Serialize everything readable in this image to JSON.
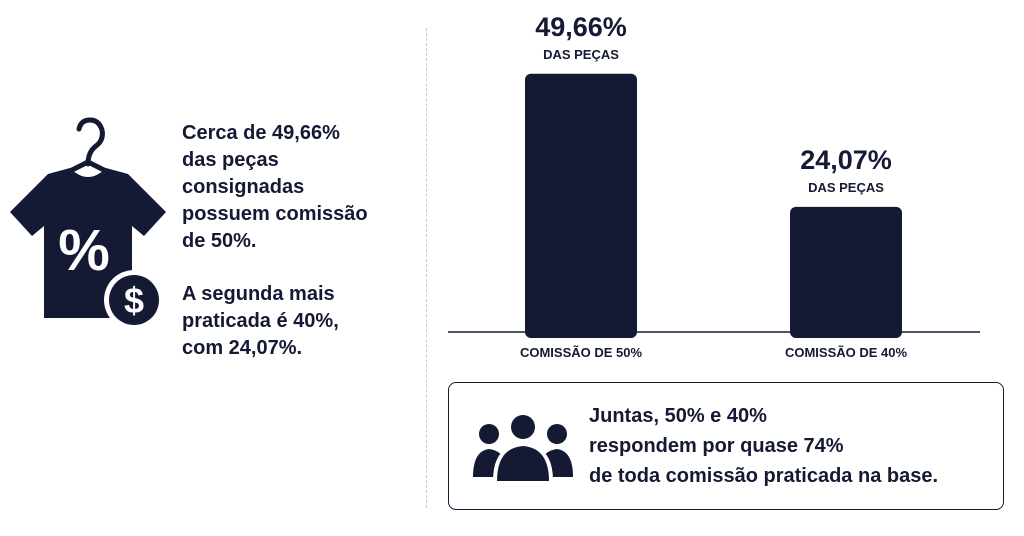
{
  "colors": {
    "primary": "#141a33",
    "divider": "#c9c9cf",
    "background": "#ffffff"
  },
  "icons": {
    "shirt": "shirt-hanger-percent-icon",
    "dollar": "dollar-coin-icon",
    "people": "people-group-icon"
  },
  "left": {
    "paragraph1": [
      "Cerca de 49,66%",
      "das peças",
      "consignadas",
      "possuem comissão",
      "de 50%."
    ],
    "paragraph2": [
      "A segunda mais",
      "praticada é 40%,",
      "com 24,07%."
    ]
  },
  "chart_data": {
    "type": "bar",
    "categories": [
      "COMISSÃO DE 50%",
      "COMISSÃO DE 40%"
    ],
    "values": [
      49.66,
      24.07
    ],
    "value_labels": [
      "49,66%",
      "24,07%"
    ],
    "value_unit_labels": [
      "DAS PEÇAS",
      "DAS PEÇAS"
    ],
    "ylim": [
      0,
      55
    ],
    "grid": false,
    "color": "#141a33"
  },
  "summary": {
    "lines": [
      "Juntas, 50% e 40%",
      "respondem por quase 74%",
      "de toda comissão praticada na base."
    ]
  }
}
